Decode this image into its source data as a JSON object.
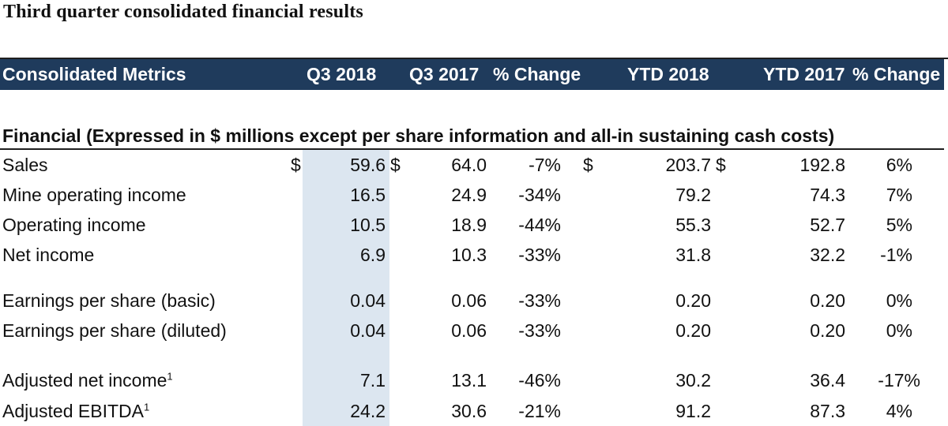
{
  "title": "Third quarter consolidated financial results",
  "header": {
    "metrics": "Consolidated Metrics",
    "q3_2018": "Q3 2018",
    "q3_2017": "Q3 2017",
    "pct_change_q": "% Change",
    "ytd_2018": "YTD 2018",
    "ytd_2017": "YTD 2017",
    "pct_change_ytd": "% Change"
  },
  "section": {
    "title": "Financial (Expressed in $ millions except per share information and all-in sustaining cash costs)"
  },
  "currency_symbol": "$",
  "footnote_mark": "1",
  "rows": [
    {
      "label": "Sales",
      "q3_2018": "59.6",
      "q3_2017": "64.0",
      "pct_q": "-7%",
      "ytd_2018": "203.7",
      "ytd_2017": "192.8",
      "pct_ytd": "6%"
    },
    {
      "label": "Mine operating income",
      "q3_2018": "16.5",
      "q3_2017": "24.9",
      "pct_q": "-34%",
      "ytd_2018": "79.2",
      "ytd_2017": "74.3",
      "pct_ytd": "7%"
    },
    {
      "label": "Operating income",
      "q3_2018": "10.5",
      "q3_2017": "18.9",
      "pct_q": "-44%",
      "ytd_2018": "55.3",
      "ytd_2017": "52.7",
      "pct_ytd": "5%"
    },
    {
      "label": "Net income",
      "q3_2018": "6.9",
      "q3_2017": "10.3",
      "pct_q": "-33%",
      "ytd_2018": "31.8",
      "ytd_2017": "32.2",
      "pct_ytd": "-1%"
    },
    {
      "label": "Earnings per share (basic)",
      "q3_2018": "0.04",
      "q3_2017": "0.06",
      "pct_q": "-33%",
      "ytd_2018": "0.20",
      "ytd_2017": "0.20",
      "pct_ytd": "0%"
    },
    {
      "label": "Earnings per share (diluted)",
      "q3_2018": "0.04",
      "q3_2017": "0.06",
      "pct_q": "-33%",
      "ytd_2018": "0.20",
      "ytd_2017": "0.20",
      "pct_ytd": "0%"
    },
    {
      "label": "Adjusted net income",
      "q3_2018": "7.1",
      "q3_2017": "13.1",
      "pct_q": "-46%",
      "ytd_2018": "30.2",
      "ytd_2017": "36.4",
      "pct_ytd": "-17%"
    },
    {
      "label": "Adjusted EBITDA",
      "q3_2018": "24.2",
      "q3_2017": "30.6",
      "pct_q": "-21%",
      "ytd_2018": "91.2",
      "ytd_2017": "87.3",
      "pct_ytd": "4%"
    }
  ]
}
